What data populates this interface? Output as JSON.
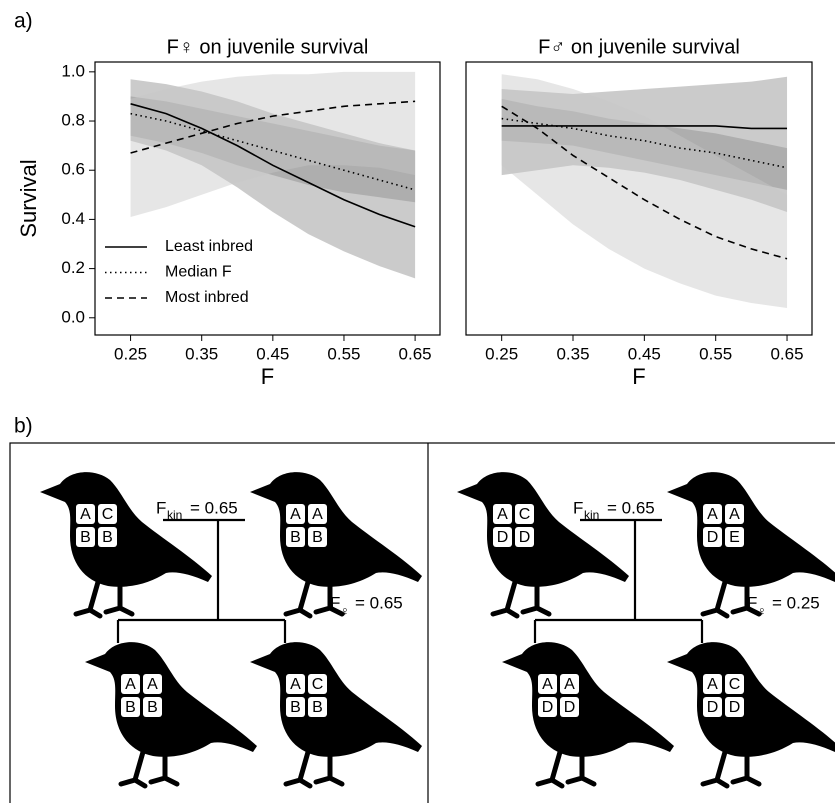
{
  "panel_labels": [
    "a)",
    "b)"
  ],
  "chart_data": [
    {
      "type": "line",
      "title": "F♀ on juvenile survival",
      "x_label": "F",
      "y_label": "Survival",
      "x": [
        0.25,
        0.3,
        0.35,
        0.4,
        0.45,
        0.5,
        0.55,
        0.6,
        0.65
      ],
      "xlim": [
        0.2,
        0.685
      ],
      "ylim": [
        -0.07,
        1.04
      ],
      "xticks": [
        0.25,
        0.35,
        0.45,
        0.55,
        0.65
      ],
      "yticks": [
        {
          "value": 0,
          "label": "0.0"
        },
        0.2,
        0.4,
        0.6,
        0.8,
        {
          "value": 1,
          "label": "1.0"
        }
      ],
      "legend": "bottom-left",
      "series": [
        {
          "name": "Least inbred",
          "color": "#000000",
          "dash": "solid",
          "band_color": "#8c8c8c",
          "values": [
            0.87,
            0.83,
            0.77,
            0.7,
            0.62,
            0.55,
            0.48,
            0.42,
            0.37
          ],
          "upper": [
            0.97,
            0.95,
            0.92,
            0.88,
            0.83,
            0.79,
            0.75,
            0.71,
            0.68
          ],
          "lower": [
            0.72,
            0.68,
            0.62,
            0.53,
            0.43,
            0.34,
            0.27,
            0.21,
            0.16
          ]
        },
        {
          "name": "Median F",
          "color": "#000000",
          "dash": "dotted",
          "band_color": "#8c8c8c",
          "values": [
            0.83,
            0.8,
            0.76,
            0.72,
            0.68,
            0.64,
            0.6,
            0.56,
            0.52
          ],
          "upper": [
            0.9,
            0.88,
            0.85,
            0.82,
            0.79,
            0.76,
            0.73,
            0.7,
            0.68
          ],
          "lower": [
            0.74,
            0.71,
            0.67,
            0.62,
            0.58,
            0.54,
            0.51,
            0.49,
            0.47
          ]
        },
        {
          "name": "Most inbred",
          "color": "#000000",
          "dash": "dashed",
          "band_color": "#c8c8c8",
          "values": [
            0.67,
            0.71,
            0.75,
            0.79,
            0.82,
            0.84,
            0.86,
            0.87,
            0.88
          ],
          "upper": [
            0.89,
            0.93,
            0.96,
            0.98,
            0.99,
            0.99,
            1.0,
            1.0,
            1.0
          ],
          "lower": [
            0.41,
            0.45,
            0.5,
            0.55,
            0.59,
            0.62,
            0.62,
            0.61,
            0.58
          ]
        }
      ]
    },
    {
      "type": "line",
      "title": "F♂ on juvenile survival",
      "x_label": "F",
      "x": [
        0.25,
        0.3,
        0.35,
        0.4,
        0.45,
        0.5,
        0.55,
        0.6,
        0.65
      ],
      "xlim": [
        0.2,
        0.685
      ],
      "ylim": [
        -0.07,
        1.04
      ],
      "xticks": [
        0.25,
        0.35,
        0.45,
        0.55,
        0.65
      ],
      "series": [
        {
          "color": "#000000",
          "dash": "solid",
          "band_color": "#8c8c8c",
          "values": [
            0.78,
            0.78,
            0.78,
            0.78,
            0.78,
            0.78,
            0.78,
            0.77,
            0.77
          ],
          "upper": [
            0.93,
            0.92,
            0.91,
            0.92,
            0.93,
            0.94,
            0.95,
            0.96,
            0.98
          ],
          "lower": [
            0.58,
            0.6,
            0.62,
            0.61,
            0.59,
            0.56,
            0.52,
            0.48,
            0.43
          ]
        },
        {
          "color": "#000000",
          "dash": "dotted",
          "band_color": "#8c8c8c",
          "values": [
            0.81,
            0.79,
            0.77,
            0.74,
            0.72,
            0.69,
            0.67,
            0.64,
            0.61
          ],
          "upper": [
            0.89,
            0.86,
            0.84,
            0.81,
            0.79,
            0.77,
            0.75,
            0.72,
            0.69
          ],
          "lower": [
            0.72,
            0.71,
            0.7,
            0.67,
            0.64,
            0.61,
            0.58,
            0.55,
            0.52
          ]
        },
        {
          "color": "#000000",
          "dash": "dashed",
          "band_color": "#c8c8c8",
          "values": [
            0.86,
            0.77,
            0.66,
            0.57,
            0.48,
            0.4,
            0.33,
            0.28,
            0.24
          ],
          "upper": [
            0.99,
            0.97,
            0.93,
            0.88,
            0.82,
            0.74,
            0.66,
            0.58,
            0.5
          ],
          "lower": [
            0.62,
            0.5,
            0.38,
            0.28,
            0.2,
            0.14,
            0.09,
            0.06,
            0.04
          ]
        }
      ]
    }
  ],
  "diagram": {
    "panels": [
      {
        "kinship": {
          "symbol": "F",
          "subscript": "kin",
          "text": "= 0.65"
        },
        "offspring_f": {
          "symbol": "F",
          "subscript": "♀",
          "text": "= 0.65"
        },
        "parents": [
          [
            "A",
            "C",
            "B",
            "B"
          ],
          [
            "A",
            "A",
            "B",
            "B"
          ]
        ],
        "offspring": [
          [
            "A",
            "A",
            "B",
            "B"
          ],
          [
            "A",
            "C",
            "B",
            "B"
          ]
        ]
      },
      {
        "kinship": {
          "symbol": "F",
          "subscript": "kin",
          "text": "= 0.65"
        },
        "offspring_f": {
          "symbol": "F",
          "subscript": "♀",
          "text": "= 0.25"
        },
        "parents": [
          [
            "A",
            "C",
            "D",
            "D"
          ],
          [
            "A",
            "A",
            "D",
            "E"
          ]
        ],
        "offspring": [
          [
            "A",
            "A",
            "D",
            "D"
          ],
          [
            "A",
            "C",
            "D",
            "D"
          ]
        ]
      }
    ]
  }
}
